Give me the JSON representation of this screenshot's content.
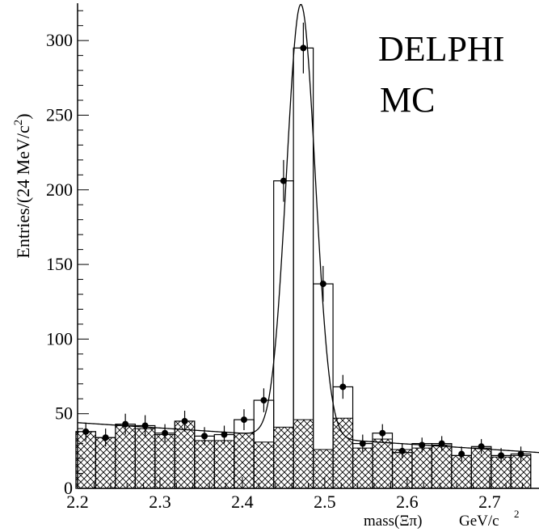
{
  "chart_data": {
    "type": "bar",
    "annotations": [
      "DELPHI",
      "MC"
    ],
    "xlabel": "mass(Ξπ)",
    "xunit": "GeV/c",
    "xunit_exp": "2",
    "ylabel": "Entries/(24 MeV/c",
    "ylabel_exp": "2",
    "ylabel_close": ")",
    "xlim": [
      2.2,
      2.76
    ],
    "ylim": [
      0,
      325
    ],
    "x_ticks": [
      "2.2",
      "2.3",
      "2.4",
      "2.5",
      "2.6",
      "2.7"
    ],
    "y_ticks": [
      "0",
      "50",
      "100",
      "150",
      "200",
      "250",
      "300"
    ],
    "bin_width": 0.024,
    "bin_centers": [
      2.21,
      2.234,
      2.258,
      2.282,
      2.306,
      2.33,
      2.354,
      2.378,
      2.402,
      2.426,
      2.45,
      2.474,
      2.498,
      2.522,
      2.546,
      2.57,
      2.594,
      2.618,
      2.642,
      2.666,
      2.69,
      2.714,
      2.738
    ],
    "series": [
      {
        "name": "",
        "style": "open histogram",
        "values": [
          38,
          34,
          43,
          42,
          37,
          45,
          35,
          36,
          46,
          59,
          206,
          295,
          137,
          68,
          30,
          37,
          24,
          30,
          30,
          22,
          28,
          22,
          23
        ]
      },
      {
        "name": "",
        "style": "hatched histogram",
        "values": [
          38,
          34,
          42,
          40,
          36,
          45,
          32,
          32,
          37,
          31,
          41,
          46,
          26,
          47,
          27,
          33,
          26,
          27,
          29,
          22,
          27,
          21,
          22
        ]
      },
      {
        "name": "",
        "style": "points with error bars",
        "values": [
          38,
          34,
          43,
          42,
          37,
          45,
          35,
          36,
          46,
          59,
          206,
          295,
          137,
          68,
          30,
          37,
          25,
          29,
          30,
          23,
          28,
          22,
          23
        ],
        "errors": [
          6,
          6,
          7,
          7,
          6,
          7,
          6,
          6,
          7,
          8,
          14,
          17,
          12,
          8,
          6,
          6,
          5,
          5,
          5,
          5,
          5,
          5,
          5
        ]
      },
      {
        "name": "",
        "style": "fit curve (gaussian + linear background)",
        "background_linear": [
          [
            2.2,
            44
          ],
          [
            2.76,
            24
          ]
        ],
        "gaussian": {
          "mean": 2.471,
          "sigma": 0.0175,
          "amplitude": 290
        }
      }
    ]
  }
}
